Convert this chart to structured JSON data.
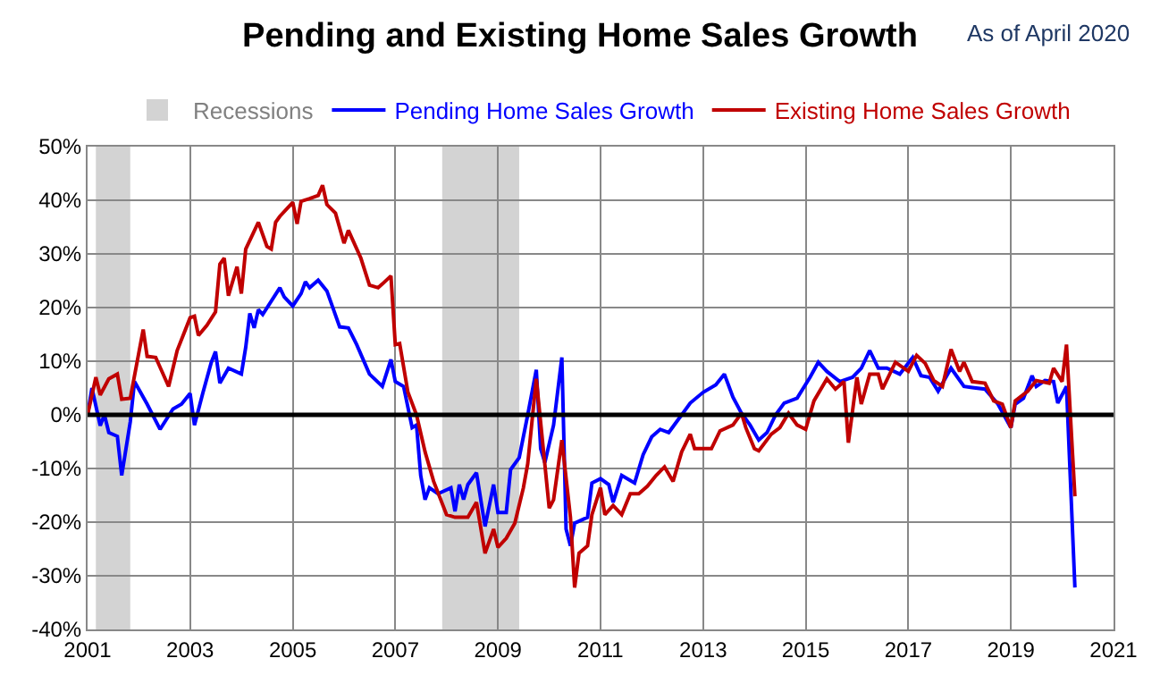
{
  "chart_data": {
    "type": "line",
    "title": "Pending and Existing Home Sales Growth",
    "annotations": [
      "As of April 2020"
    ],
    "xlim": [
      "2001-01-01",
      "2021-01-01"
    ],
    "xticks": [
      {
        "value": "2001-01-01",
        "label": "2001"
      },
      {
        "value": "2003-01-01",
        "label": "2003"
      },
      {
        "value": "2005-01-01",
        "label": "2005"
      },
      {
        "value": "2007-01-01",
        "label": "2007"
      },
      {
        "value": "2009-01-01",
        "label": "2009"
      },
      {
        "value": "2011-01-01",
        "label": "2011"
      },
      {
        "value": "2013-01-01",
        "label": "2013"
      },
      {
        "value": "2015-01-01",
        "label": "2015"
      },
      {
        "value": "2017-01-01",
        "label": "2017"
      },
      {
        "value": "2019-01-01",
        "label": "2019"
      },
      {
        "value": "2021-01-01",
        "label": "2021"
      }
    ],
    "ylim": [
      -40,
      50
    ],
    "yticks": [
      {
        "value": -40,
        "label": "-40%"
      },
      {
        "value": -30,
        "label": "-30%"
      },
      {
        "value": -20,
        "label": "-20%"
      },
      {
        "value": -10,
        "label": "-10%"
      },
      {
        "value": 0,
        "label": "0%"
      },
      {
        "value": 10,
        "label": "10%"
      },
      {
        "value": 20,
        "label": "20%"
      },
      {
        "value": 30,
        "label": "30%"
      },
      {
        "value": 40,
        "label": "40%"
      },
      {
        "value": 50,
        "label": "50%"
      }
    ],
    "grid": true,
    "legend": "top",
    "marker": "none",
    "line_style": "solid",
    "bands": [
      {
        "axis": "x",
        "from": "2001-03",
        "to": "2001-11",
        "label": "Recessions",
        "color": "#d3d3d3"
      },
      {
        "axis": "x",
        "from": "2007-12",
        "to": "2009-06",
        "color": "#d3d3d3"
      }
    ],
    "ref_lines": [
      {
        "axis": "y",
        "value": 0,
        "color": "#000000"
      }
    ],
    "series": [
      {
        "name": "Pending Home Sales Growth",
        "color": "#0000ff",
        "x": [
          "2001-01",
          "2001-02",
          "2001-04",
          "2001-05",
          "2001-06",
          "2001-08",
          "2001-09",
          "2001-11",
          "2001-12",
          "2002-03",
          "2002-06",
          "2002-09",
          "2002-11",
          "2003-01",
          "2003-02",
          "2003-04",
          "2003-06",
          "2003-07",
          "2003-08",
          "2003-10",
          "2004-01",
          "2004-02",
          "2004-03",
          "2004-04",
          "2004-05",
          "2004-06",
          "2004-10",
          "2004-11",
          "2005-01",
          "2005-03",
          "2005-04",
          "2005-05",
          "2005-07",
          "2005-09",
          "2005-12",
          "2006-02",
          "2006-04",
          "2006-07",
          "2006-10",
          "2006-12",
          "2007-01",
          "2007-03",
          "2007-05",
          "2007-06",
          "2007-07",
          "2007-08",
          "2007-09",
          "2007-11",
          "2008-02",
          "2008-03",
          "2008-04",
          "2008-05",
          "2008-06",
          "2008-08",
          "2008-10",
          "2008-12",
          "2009-01",
          "2009-03",
          "2009-04",
          "2009-06",
          "2009-08",
          "2009-10",
          "2009-11",
          "2009-12",
          "2010-02",
          "2010-04",
          "2010-05",
          "2010-06",
          "2010-07",
          "2010-10",
          "2010-11",
          "2011-01",
          "2011-03",
          "2011-04",
          "2011-06",
          "2011-09",
          "2011-11",
          "2012-01",
          "2012-03",
          "2012-05",
          "2012-08",
          "2012-10",
          "2013-01",
          "2013-04",
          "2013-06",
          "2013-08",
          "2013-10",
          "2013-12",
          "2014-02",
          "2014-04",
          "2014-06",
          "2014-08",
          "2014-11",
          "2015-02",
          "2015-04",
          "2015-06",
          "2015-09",
          "2015-12",
          "2016-02",
          "2016-04",
          "2016-06",
          "2016-08",
          "2016-11",
          "2017-02",
          "2017-04",
          "2017-06",
          "2017-08",
          "2017-11",
          "2018-02",
          "2018-04",
          "2018-07",
          "2018-10",
          "2019-01",
          "2019-02",
          "2019-04",
          "2019-06",
          "2019-07",
          "2019-09",
          "2019-11",
          "2019-12",
          "2020-02",
          "2020-04"
        ],
        "values": [
          0,
          5,
          -2,
          0,
          -3.3,
          -4,
          -11.3,
          -1.3,
          6.2,
          2,
          -2.7,
          1.1,
          2,
          4,
          -1.9,
          4,
          9.8,
          11.8,
          5.9,
          8.7,
          7.6,
          12.6,
          18.9,
          16.2,
          19.6,
          18.7,
          23.7,
          22,
          20.3,
          22.6,
          24.8,
          23.7,
          25.1,
          23.1,
          16.4,
          16.2,
          13.1,
          7.6,
          5.3,
          10.3,
          6.2,
          5.3,
          -2.4,
          -1.9,
          -11.3,
          -15.8,
          -13.6,
          -14.7,
          -13.6,
          -18,
          -13,
          -15.8,
          -13,
          -10.8,
          -20.8,
          -13,
          -18.2,
          -18.2,
          -10.2,
          -8,
          0,
          8.4,
          -6.3,
          -8.9,
          -1.9,
          10.7,
          -21.3,
          -24.4,
          -20.2,
          -19.1,
          -12.7,
          -11.9,
          -13,
          -16.3,
          -11.3,
          -12.7,
          -7.4,
          -4.1,
          -2.7,
          -3.3,
          0,
          2.2,
          4.2,
          5.6,
          7.6,
          3.3,
          0.3,
          -1.9,
          -4.7,
          -3.3,
          0,
          2.2,
          3.1,
          7,
          9.8,
          8.1,
          6.2,
          7,
          8.7,
          12,
          8.7,
          8.7,
          7.6,
          10.7,
          7.3,
          7,
          4.4,
          8.7,
          5.3,
          5.1,
          4.8,
          2,
          -2.4,
          2,
          3.1,
          7.3,
          5.3,
          6.4,
          6.2,
          2.2,
          5.3,
          -32.2
        ]
      },
      {
        "name": "Existing Home Sales Growth",
        "color": "#c00000",
        "x": [
          "2001-01",
          "2001-03",
          "2001-04",
          "2001-06",
          "2001-08",
          "2001-09",
          "2001-11",
          "2002-02",
          "2002-03",
          "2002-05",
          "2002-08",
          "2002-10",
          "2003-01",
          "2003-02",
          "2003-03",
          "2003-05",
          "2003-07",
          "2003-08",
          "2003-09",
          "2003-10",
          "2003-12",
          "2004-01",
          "2004-02",
          "2004-05",
          "2004-07",
          "2004-08",
          "2004-09",
          "2004-10",
          "2005-01",
          "2005-02",
          "2005-03",
          "2005-05",
          "2005-07",
          "2005-08",
          "2005-09",
          "2005-11",
          "2006-01",
          "2006-02",
          "2006-05",
          "2006-07",
          "2006-09",
          "2006-10",
          "2006-12",
          "2007-01",
          "2007-02",
          "2007-04",
          "2007-06",
          "2007-08",
          "2007-10",
          "2008-01",
          "2008-03",
          "2008-06",
          "2008-08",
          "2008-10",
          "2008-12",
          "2009-01",
          "2009-03",
          "2009-05",
          "2009-07",
          "2009-08",
          "2009-10",
          "2010-01",
          "2010-02",
          "2010-04",
          "2010-06",
          "2010-07",
          "2010-08",
          "2010-10",
          "2010-11",
          "2011-01",
          "2011-02",
          "2011-04",
          "2011-06",
          "2011-08",
          "2011-10",
          "2011-12",
          "2012-02",
          "2012-04",
          "2012-06",
          "2012-08",
          "2012-10",
          "2012-11",
          "2013-03",
          "2013-05",
          "2013-08",
          "2013-10",
          "2013-11",
          "2014-01",
          "2014-02",
          "2014-05",
          "2014-07",
          "2014-09",
          "2014-11",
          "2015-01",
          "2015-03",
          "2015-06",
          "2015-08",
          "2015-10",
          "2015-11",
          "2016-01",
          "2016-02",
          "2016-04",
          "2016-06",
          "2016-07",
          "2016-10",
          "2017-01",
          "2017-03",
          "2017-05",
          "2017-07",
          "2017-09",
          "2017-11",
          "2018-01",
          "2018-02",
          "2018-04",
          "2018-07",
          "2018-09",
          "2018-11",
          "2019-01",
          "2019-02",
          "2019-05",
          "2019-07",
          "2019-10",
          "2019-11",
          "2020-01",
          "2020-02",
          "2020-04"
        ],
        "values": [
          0,
          7,
          3.7,
          6.7,
          7.6,
          2.9,
          3.1,
          15.9,
          10.9,
          10.7,
          5.3,
          12,
          18.1,
          18.4,
          14.8,
          16.7,
          19.2,
          28.1,
          29.2,
          22.2,
          27.6,
          22.6,
          30.9,
          35.9,
          31.4,
          30.9,
          35.9,
          37,
          39.6,
          35.6,
          39.8,
          40.3,
          40.9,
          42.8,
          39.2,
          37.6,
          32,
          34.4,
          29.2,
          24.2,
          23.7,
          24.4,
          25.9,
          13.1,
          13.3,
          4.2,
          0,
          -6.9,
          -12.4,
          -18.6,
          -19.1,
          -19.1,
          -16.3,
          -25.8,
          -21.3,
          -24.7,
          -23,
          -20.2,
          -13.6,
          -9.1,
          6.7,
          -17.4,
          -15.8,
          -4.7,
          -19.1,
          -32.2,
          -25.8,
          -24.4,
          -18.6,
          -13.6,
          -18.6,
          -16.9,
          -18.6,
          -14.7,
          -14.7,
          -13.3,
          -11.3,
          -9.7,
          -12.4,
          -6.9,
          -3.6,
          -6.3,
          -6.3,
          -3,
          -1.9,
          0.3,
          -2.4,
          -6.3,
          -6.7,
          -3.6,
          -2.4,
          0.3,
          -1.9,
          -2.7,
          2.6,
          6.7,
          4.8,
          6.2,
          -5.2,
          7,
          2,
          7.6,
          7.6,
          4.8,
          9.8,
          8.1,
          11.1,
          9.6,
          6.4,
          5.3,
          12.2,
          8.1,
          9.8,
          6.2,
          5.9,
          2.6,
          2,
          -2.4,
          2.6,
          4.4,
          6.4,
          5.9,
          8.7,
          6.2,
          13.1,
          -15.2
        ]
      }
    ]
  }
}
